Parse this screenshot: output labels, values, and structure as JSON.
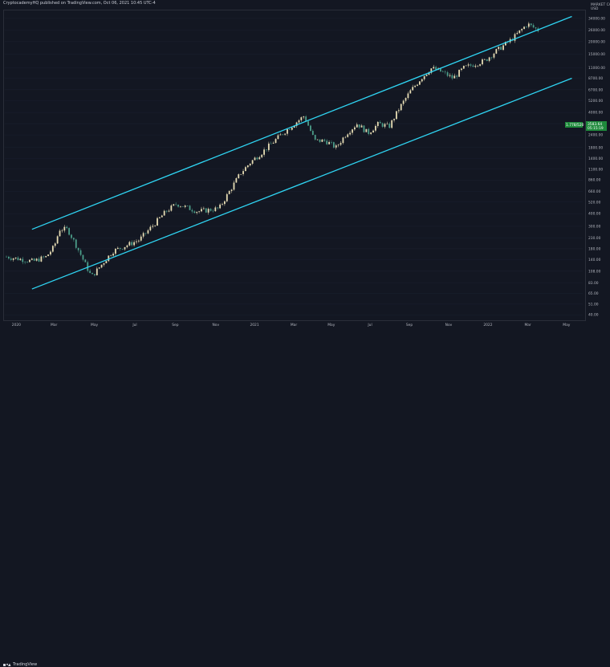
{
  "header": {
    "text": "CryptocademyHQ published on TradingView.com, Oct 06, 2021 10:45 UTC-4"
  },
  "brand": {
    "name": "TradingView",
    "icon": "tradingview-logo-icon"
  },
  "colors": {
    "background": "#131722",
    "channel": "#2fd4f2",
    "up": "#e6dcb4",
    "down": "#4c9e8a",
    "price_label": "#1e8a3b"
  },
  "chart_data": {
    "type": "candlestick",
    "title": "",
    "scale": "log",
    "currency_label": [
      "MARKET CAP",
      "USD"
    ],
    "y_ticks": [
      34000,
      26000,
      20000,
      15000,
      11000,
      8700,
      6700,
      5200,
      4000,
      3100,
      2400,
      1800,
      1400,
      1100,
      860,
      660,
      520,
      400,
      300,
      230,
      180,
      140,
      108,
      83,
      65,
      51,
      40
    ],
    "y_tick_labels": [
      "34000.00",
      "26000.00",
      "20000.00",
      "15000.00",
      "11000.00",
      "8700.00",
      "6700.00",
      "5200.00",
      "4000.00",
      "3100.00",
      "2400.00",
      "1800.00",
      "1400.00",
      "1100.00",
      "860.00",
      "660.00",
      "520.00",
      "400.00",
      "300.00",
      "230.00",
      "180.00",
      "140.00",
      "108.00",
      "83.00",
      "65.00",
      "51.00",
      "40.00"
    ],
    "x_ticks": [
      "2020",
      "Mar",
      "May",
      "Jul",
      "Sep",
      "Nov",
      "2021",
      "Mar",
      "May",
      "Jul",
      "Sep",
      "Nov",
      "2022",
      "Mar",
      "May"
    ],
    "price_tags": [
      {
        "value": "1.778/520",
        "kind": "symbol"
      },
      {
        "value": "3583.64",
        "sub": "05:15:19",
        "kind": "last"
      }
    ],
    "channel": {
      "upper": {
        "from": [
          "2020-02-10",
          280
        ],
        "to": [
          "2022-04-15",
          35500
        ]
      },
      "lower": {
        "from": [
          "2020-02-10",
          72
        ],
        "to": [
          "2022-04-15",
          8700
        ]
      }
    },
    "series": {
      "keypoints_time": [
        0,
        0.05,
        0.075,
        0.09,
        0.1,
        0.115,
        0.13,
        0.16,
        0.2,
        0.25,
        0.3,
        0.32,
        0.36,
        0.4,
        0.44,
        0.46,
        0.48,
        0.5,
        0.52,
        0.56,
        0.58,
        0.6,
        0.62,
        0.64,
        0.66,
        0.68,
        0.7,
        0.72,
        0.74,
        0.76,
        0.78,
        0.8,
        0.82,
        0.84,
        0.86,
        0.88,
        0.9,
        0.92,
        0.95,
        0.98,
        1.0
      ],
      "keypoints_price": [
        150,
        135,
        150,
        190,
        280,
        280,
        200,
        95,
        170,
        220,
        420,
        500,
        420,
        450,
        1000,
        1300,
        1600,
        2000,
        2500,
        3700,
        2100,
        2100,
        1800,
        2500,
        3100,
        2500,
        3100,
        2900,
        4500,
        6500,
        8700,
        11000,
        10000,
        8700,
        11000,
        12000,
        13000,
        16000,
        21000,
        30000,
        26000
      ]
    }
  }
}
